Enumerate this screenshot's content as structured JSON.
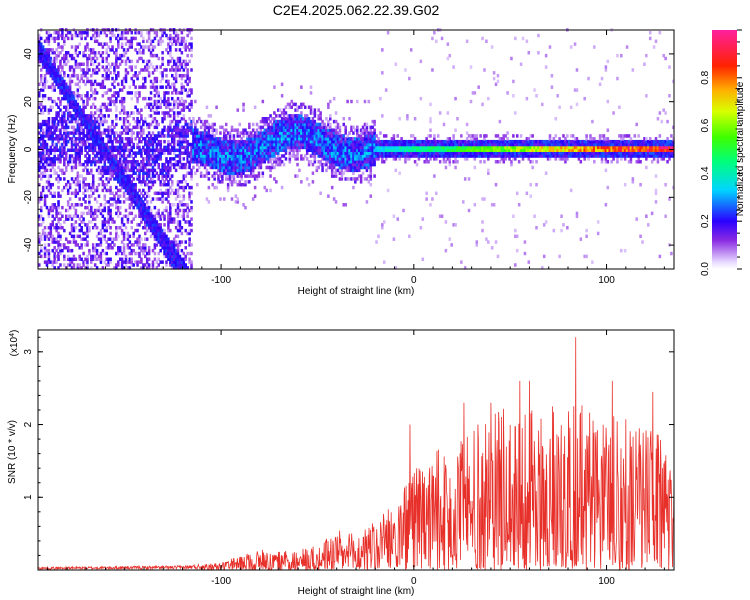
{
  "figure": {
    "title": "C2E4.2025.062.22.39.G02"
  },
  "colors": {
    "snr_line": "#e8302a",
    "axis": "#000000",
    "background": "#ffffff"
  },
  "chart_data": [
    {
      "type": "heatmap",
      "name": "spectrogram",
      "xlabel": "Height of straight line (km)",
      "ylabel": "Frequency (Hz)",
      "xlim": [
        -195,
        135
      ],
      "ylim": [
        -50,
        50
      ],
      "x_ticks": [
        -100,
        0,
        100
      ],
      "x_tick_labels": [
        "-100",
        "0",
        "100"
      ],
      "y_ticks": [
        -40,
        -20,
        0,
        20,
        40
      ],
      "y_tick_labels": [
        "-40",
        "-20",
        "0",
        "20",
        "40"
      ],
      "grid": false,
      "colormap": "rainbow (white → violet → blue → cyan → green → yellow → red → magenta)",
      "colorbar": {
        "label": "Normalized spectral amplitude",
        "range": [
          0,
          1
        ],
        "ticks": [
          0.0,
          0.2,
          0.4,
          0.6,
          0.8
        ],
        "tick_labels": [
          "0.0",
          "0.2",
          "0.4",
          "0.6",
          "0.8"
        ]
      },
      "features": [
        {
          "x_range": [
            -195,
            -115
          ],
          "frequency_range": [
            -50,
            50
          ],
          "amplitude_range": [
            0.0,
            0.3
          ]
        },
        {
          "x_range": [
            -115,
            -20
          ],
          "frequency_range": [
            -12,
            12
          ],
          "amplitude_range": [
            0.1,
            0.4
          ]
        },
        {
          "x_range": [
            -20,
            135
          ],
          "frequency_range": [
            -3,
            3
          ],
          "amplitude_range": [
            0.3,
            0.95
          ]
        }
      ]
    },
    {
      "type": "line",
      "name": "snr",
      "xlabel": "Height of straight line (km)",
      "ylabel": "SNR (10 * v/v)",
      "y_multiplier_label": "(x10",
      "y_multiplier_exp": "4",
      "y_multiplier_close": ")",
      "xlim": [
        -195,
        135
      ],
      "ylim": [
        0,
        3.3
      ],
      "x_ticks": [
        -100,
        0,
        100
      ],
      "x_tick_labels": [
        "-100",
        "0",
        "100"
      ],
      "y_ticks": [
        1,
        2,
        3
      ],
      "y_tick_labels": [
        "1",
        "2",
        "3"
      ],
      "grid": false,
      "series": [
        {
          "envelope_x": [
            -195,
            -120,
            -100,
            -80,
            -70,
            -50,
            -40,
            -30,
            -20,
            -10,
            0,
            10,
            20,
            30,
            40,
            50,
            60,
            70,
            80,
            90,
            100,
            110,
            120,
            130,
            135
          ],
          "envelope_y": [
            0.03,
            0.05,
            0.1,
            0.3,
            0.25,
            0.35,
            0.55,
            0.5,
            0.7,
            0.9,
            1.4,
            1.6,
            1.8,
            2.0,
            2.1,
            2.4,
            2.2,
            2.2,
            2.5,
            2.3,
            2.2,
            2.1,
            2.0,
            1.8,
            1.7
          ],
          "peaks": [
            {
              "x": 84,
              "y": 3.2
            },
            {
              "x": 103,
              "y": 2.6
            },
            {
              "x": 55,
              "y": 2.6
            },
            {
              "x": 60,
              "y": 2.6
            },
            {
              "x": 124,
              "y": 2.45
            },
            {
              "x": 26,
              "y": 2.3
            },
            {
              "x": 40,
              "y": 2.3
            },
            {
              "x": -2,
              "y": 2.0
            }
          ]
        }
      ]
    }
  ]
}
